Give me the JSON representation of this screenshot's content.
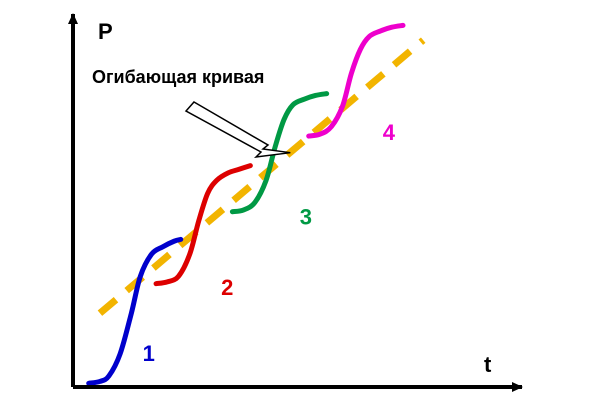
{
  "chart_data": {
    "type": "line",
    "title": "",
    "xlabel": "t",
    "ylabel": "P",
    "xlim": [
      0,
      100
    ],
    "ylim": [
      0,
      100
    ],
    "grid": false,
    "annotation": {
      "text": "Огибающая кривая",
      "points_to": [
        48.4,
        63.5
      ]
    },
    "envelope": {
      "x": [
        6,
        78
      ],
      "y": [
        20,
        94
      ],
      "color": "#f2b400"
    },
    "series": [
      {
        "label": "1",
        "color": "#0000cc",
        "x": [
          3.5,
          6,
          8,
          10.5,
          13,
          15,
          17.5,
          20,
          22.5,
          24
        ],
        "y": [
          1,
          1.5,
          3,
          9,
          20,
          30,
          36,
          38,
          39.5,
          40
        ]
      },
      {
        "label": "2",
        "color": "#dd0000",
        "x": [
          18.5,
          21,
          23.5,
          26,
          28,
          30,
          32,
          34.5,
          37,
          39.5
        ],
        "y": [
          28,
          28.5,
          30,
          36,
          45,
          52.5,
          56,
          58,
          59,
          60
        ]
      },
      {
        "label": "3",
        "color": "#009944",
        "x": [
          35.5,
          38,
          40.5,
          43,
          45,
          47,
          49,
          51.5,
          54,
          56.5
        ],
        "y": [
          47.5,
          48,
          50,
          56,
          65,
          72.5,
          76.5,
          78,
          79,
          79.5
        ]
      },
      {
        "label": "4",
        "color": "#ee00cc",
        "x": [
          52.5,
          55,
          57.5,
          60,
          62,
          64,
          66,
          68.5,
          71,
          73.5
        ],
        "y": [
          68,
          68.5,
          70.5,
          76,
          85,
          91.5,
          95,
          96.5,
          97.5,
          98
        ]
      }
    ]
  }
}
